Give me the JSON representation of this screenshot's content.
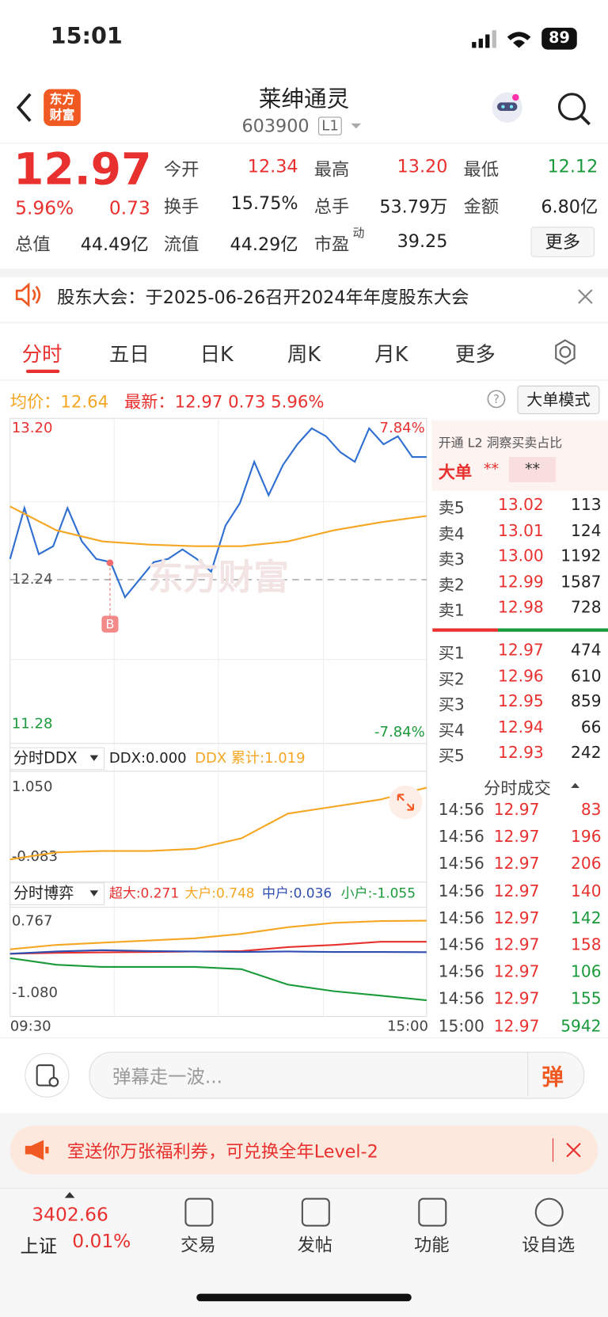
{
  "status": {
    "time": "15:01",
    "battery": "89"
  },
  "header": {
    "logo_lines": [
      "东方",
      "财富"
    ],
    "title": "莱绅通灵",
    "code": "603900",
    "level": "L1"
  },
  "quote": {
    "price": "12.97",
    "percent": "5.96%",
    "change": "0.73",
    "more": "更多",
    "fields": [
      {
        "label": "今开",
        "value": "12.34",
        "color": "#e8312f"
      },
      {
        "label": "最高",
        "value": "13.20",
        "color": "#e8312f"
      },
      {
        "label": "最低",
        "value": "12.12",
        "color": "#1a9a3a"
      },
      {
        "label": "换手",
        "value": "15.75%",
        "color": "#222"
      },
      {
        "label": "总手",
        "value": "53.79万",
        "color": "#222"
      },
      {
        "label": "金额",
        "value": "6.80亿",
        "color": "#222"
      },
      {
        "label": "总值",
        "value": "44.49亿",
        "color": "#222"
      },
      {
        "label": "流值",
        "value": "44.29亿",
        "color": "#222"
      },
      {
        "label": "市盈",
        "sup": "动",
        "value": "39.25",
        "color": "#222"
      }
    ]
  },
  "notice": {
    "text": "股东大会：于2025-06-26召开2024年年度股东大会"
  },
  "tabs": [
    "分时",
    "五日",
    "日K",
    "周K",
    "月K",
    "更多"
  ],
  "legend_bar": {
    "avg_label": "均价：",
    "avg": "12.64",
    "last_label": "最新：",
    "last": "12.97",
    "change": "0.73",
    "percent": "5.96%",
    "mode": "大单模式"
  },
  "chart_data": [
    {
      "type": "line",
      "ylim": [
        11.28,
        13.2
      ],
      "yticks": [
        {
          "value": 13.2,
          "label": "13.20"
        },
        12.24,
        11.28
      ],
      "right_labels": [
        "7.84%",
        "-7.84%"
      ],
      "marker": "B",
      "watermark": "东方财富",
      "series": [
        {
          "color": "#2f6fd1",
          "values": [
            12.37,
            12.69,
            12.4,
            12.45,
            12.69,
            12.48,
            12.37,
            12.35,
            12.13,
            12.24,
            12.35,
            12.37,
            12.43,
            12.37,
            12.29,
            12.58,
            12.72,
            12.98,
            12.77,
            12.96,
            13.09,
            13.19,
            13.14,
            13.04,
            12.98,
            13.19,
            13.09,
            13.14,
            13.01,
            13.01
          ]
        },
        {
          "color": "#f5a623",
          "values": [
            12.7,
            12.55,
            12.48,
            12.46,
            12.45,
            12.45,
            12.48,
            12.55,
            12.6,
            12.64
          ]
        }
      ]
    },
    {
      "type": "line",
      "selector": "分时DDX",
      "stats": [
        "DDX:0.000",
        "DDX 累计:1.019"
      ],
      "ylim": [
        -0.083,
        1.05
      ],
      "yticks": [
        {
          "value": 1.05,
          "label": "1.050"
        },
        -0.083
      ],
      "series": [
        {
          "color": "#f5a623",
          "values": [
            0,
            0.1,
            0.12,
            0.12,
            0.15,
            0.3,
            0.65,
            0.75,
            0.85,
            1.019
          ]
        }
      ]
    },
    {
      "type": "line",
      "selector": "分时博弈",
      "ylim": [
        -1.08,
        0.767
      ],
      "yticks": [
        0.767,
        {
          "value": -1.08,
          "label": "-1.080"
        }
      ],
      "x_labels": [
        "09:30",
        "15:00"
      ],
      "series": [
        {
          "name": "超大:0.271",
          "color": "#e8312f",
          "values": [
            0,
            0.02,
            0.03,
            0.04,
            0.05,
            0.06,
            0.15,
            0.2,
            0.27,
            0.271
          ]
        },
        {
          "name": "大户:0.748",
          "color": "#f5a623",
          "values": [
            0.1,
            0.2,
            0.25,
            0.3,
            0.35,
            0.45,
            0.6,
            0.7,
            0.74,
            0.748
          ]
        },
        {
          "name": "中户:0.036",
          "color": "#2f4fb0",
          "values": [
            0,
            0.05,
            0.08,
            0.06,
            0.05,
            0.04,
            0.05,
            0.04,
            0.04,
            0.036
          ]
        },
        {
          "name": "小户:-1.055",
          "color": "#1a9a3a",
          "values": [
            -0.1,
            -0.25,
            -0.3,
            -0.3,
            -0.3,
            -0.35,
            -0.7,
            -0.85,
            -0.95,
            -1.055
          ]
        }
      ]
    }
  ],
  "orderbook": {
    "promo": "开通 L2 洞察买卖占比",
    "big_label": "大单",
    "big_values": [
      "**",
      "**"
    ],
    "asks": [
      {
        "label": "卖5",
        "price": "13.02",
        "vol": "113"
      },
      {
        "label": "卖4",
        "price": "13.01",
        "vol": "124"
      },
      {
        "label": "卖3",
        "price": "13.00",
        "vol": "1192"
      },
      {
        "label": "卖2",
        "price": "12.99",
        "vol": "1587"
      },
      {
        "label": "卖1",
        "price": "12.98",
        "vol": "728"
      }
    ],
    "bids": [
      {
        "label": "买1",
        "price": "12.97",
        "vol": "474"
      },
      {
        "label": "买2",
        "price": "12.96",
        "vol": "610"
      },
      {
        "label": "买3",
        "price": "12.95",
        "vol": "859"
      },
      {
        "label": "买4",
        "price": "12.94",
        "vol": "66"
      },
      {
        "label": "买5",
        "price": "12.93",
        "vol": "242"
      }
    ],
    "trades_title": "分时成交",
    "trades": [
      {
        "time": "14:56",
        "price": "12.97",
        "vol": "83",
        "color": "#e8312f"
      },
      {
        "time": "14:56",
        "price": "12.97",
        "vol": "196",
        "color": "#e8312f"
      },
      {
        "time": "14:56",
        "price": "12.97",
        "vol": "206",
        "color": "#e8312f"
      },
      {
        "time": "14:56",
        "price": "12.97",
        "vol": "140",
        "color": "#e8312f"
      },
      {
        "time": "14:56",
        "price": "12.97",
        "vol": "142",
        "color": "#1a9a3a"
      },
      {
        "time": "14:56",
        "price": "12.97",
        "vol": "158",
        "color": "#e8312f"
      },
      {
        "time": "14:56",
        "price": "12.97",
        "vol": "106",
        "color": "#1a9a3a"
      },
      {
        "time": "14:56",
        "price": "12.97",
        "vol": "155",
        "color": "#1a9a3a"
      },
      {
        "time": "15:00",
        "price": "12.97",
        "vol": "5942",
        "color": "#1a9a3a"
      }
    ]
  },
  "comment": {
    "placeholder": "弹幕走一波...",
    "button": "弹"
  },
  "banner": {
    "text": "室送你万张福利券，可兑换全年Level-2"
  },
  "nav": {
    "index_value": "3402.66",
    "index_name": "上证",
    "index_percent": "0.01%",
    "items": [
      "交易",
      "发帖",
      "功能",
      "设自选"
    ]
  }
}
